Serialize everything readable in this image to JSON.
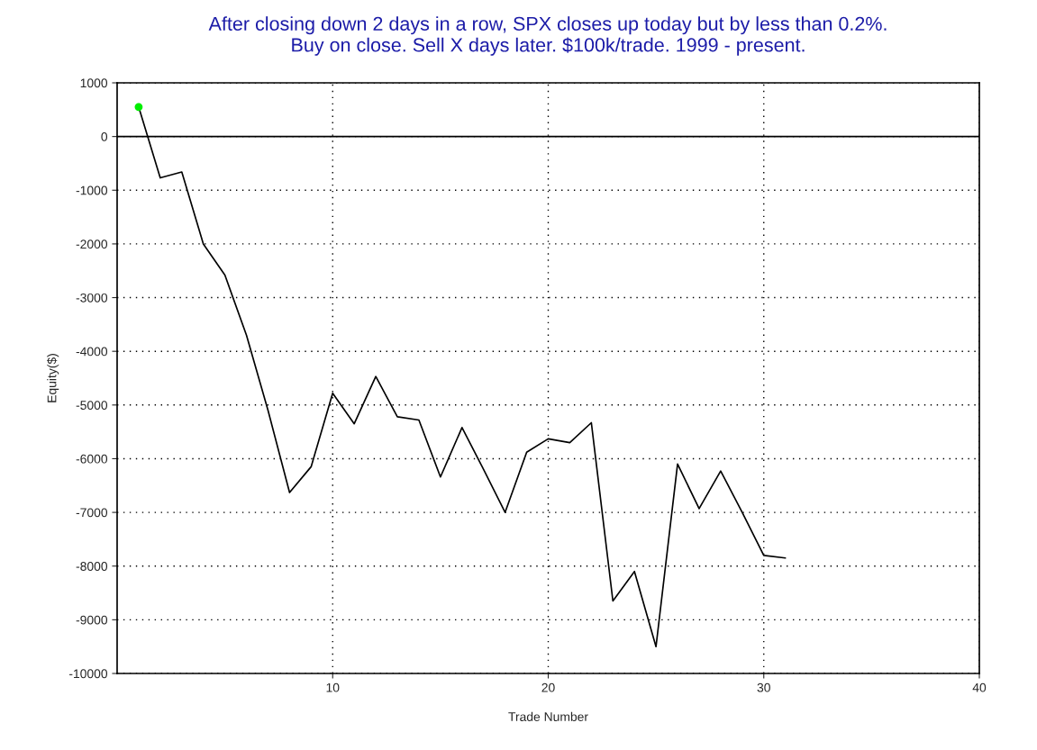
{
  "chart_data": {
    "type": "line",
    "title": "After closing down 2 days in a row, SPX closes up today but by less than 0.2%.\nBuy on close. Sell X days later. $100k/trade. 1999 - present.",
    "xlabel": "Trade Number",
    "ylabel": "Equity($)",
    "x": [
      1,
      2,
      3,
      4,
      5,
      6,
      7,
      8,
      9,
      10,
      11,
      12,
      13,
      14,
      15,
      16,
      17,
      18,
      19,
      20,
      21,
      22,
      23,
      24,
      25,
      26,
      27,
      28,
      29,
      30,
      31
    ],
    "series": [
      {
        "color": "#000000",
        "values": [
          550,
          -770,
          -660,
          -2000,
          -2580,
          -3700,
          -5100,
          -6630,
          -6150,
          -4780,
          -5350,
          -4470,
          -5220,
          -5280,
          -6340,
          -5420,
          -6200,
          -7000,
          -5880,
          -5630,
          -5700,
          -5330,
          -8650,
          -8100,
          -9500,
          -6100,
          -6930,
          -6230,
          -7000,
          -7800,
          -7850
        ]
      },
      {
        "type": "scatter",
        "color": "#00ee00",
        "x": [
          1
        ],
        "values": [
          550
        ],
        "marker": "circle"
      }
    ],
    "xlim": [
      0,
      40
    ],
    "xticks": [
      10,
      20,
      30,
      40
    ],
    "ylim": [
      -10000,
      1000
    ],
    "yticks": [
      -10000,
      -9000,
      -8000,
      -7000,
      -6000,
      -5000,
      -4000,
      -3000,
      -2000,
      -1000,
      0,
      1000
    ],
    "grid": true,
    "marker": "none",
    "line_style": "solid",
    "ref_lines": [
      {
        "axis": "y",
        "value": 0,
        "color": "#000000",
        "line_style": "solid"
      }
    ]
  }
}
